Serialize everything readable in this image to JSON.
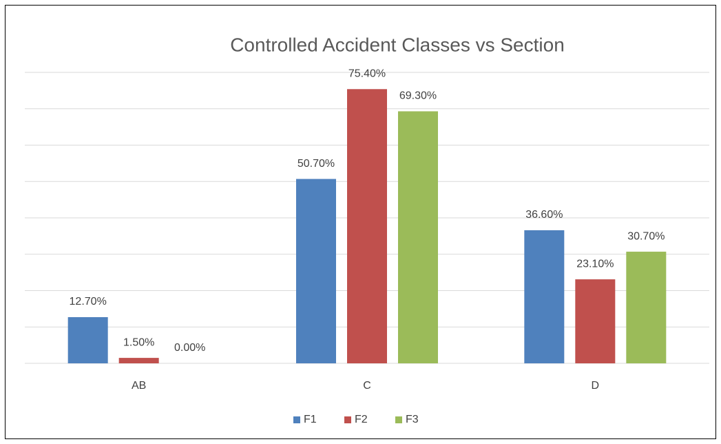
{
  "chart_data": {
    "type": "bar",
    "title": "Controlled Accident Classes vs Section",
    "categories": [
      "AB",
      "C",
      "D"
    ],
    "series": [
      {
        "name": "F1",
        "color": "#4f81bd",
        "values": [
          12.7,
          50.7,
          36.6
        ],
        "value_labels": [
          "12.70%",
          "50.70%",
          "36.60%"
        ]
      },
      {
        "name": "F2",
        "color": "#c0504d",
        "values": [
          1.5,
          75.4,
          23.1
        ],
        "value_labels": [
          "1.50%",
          "75.40%",
          "23.10%"
        ]
      },
      {
        "name": "F3",
        "color": "#9bbb59",
        "values": [
          0.0,
          69.3,
          30.7
        ],
        "value_labels": [
          "0.00%",
          "69.30%",
          "30.70%"
        ]
      }
    ],
    "ylim": [
      0,
      80
    ],
    "yticks": [
      0,
      10,
      20,
      30,
      40,
      50,
      60,
      70,
      80
    ],
    "grid": true,
    "legend": "bottom"
  }
}
